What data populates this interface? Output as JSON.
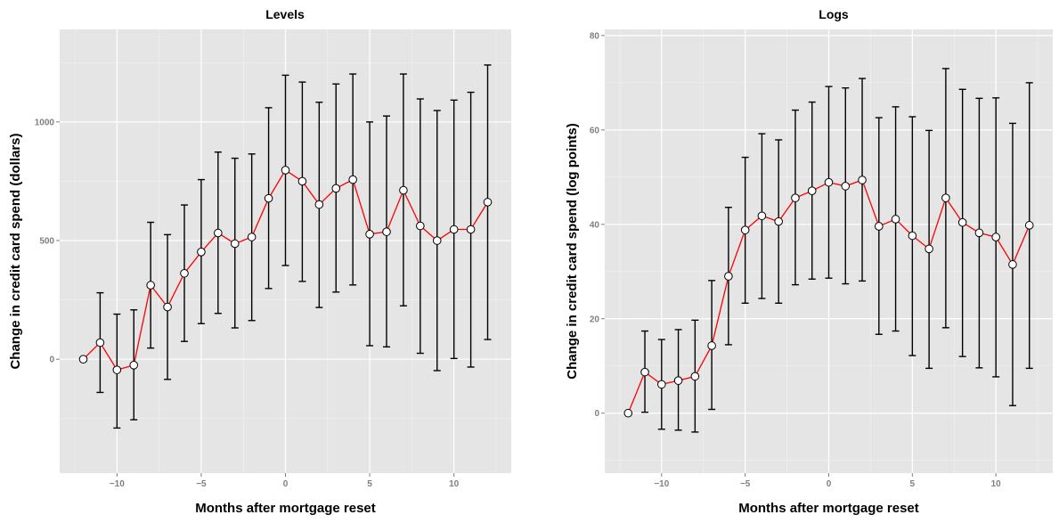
{
  "chart_data": [
    {
      "type": "line",
      "title": "Levels",
      "xlabel": "Months after mortgage reset",
      "ylabel": "Change in credit card spend (dollars)",
      "xlim": [
        -13.4,
        13.4
      ],
      "ylim": [
        -480,
        1390
      ],
      "xticks": [
        -10,
        -5,
        0,
        5,
        10
      ],
      "xtick_labels": [
        "−10",
        "−5",
        "0",
        "5",
        "10"
      ],
      "yticks": [
        0,
        500,
        1000
      ],
      "ytick_labels": [
        "0",
        "500",
        "1000"
      ],
      "grid": true,
      "series_color": "#ff0000",
      "series": [
        {
          "x": [
            -12,
            -11,
            -10,
            -9,
            -8,
            -7,
            -6,
            -5,
            -4,
            -3,
            -2,
            -1,
            0,
            1,
            2,
            3,
            4,
            5,
            6,
            7,
            8,
            9,
            10,
            11,
            12
          ],
          "y": [
            0,
            70,
            -45,
            -25,
            312,
            220,
            362,
            452,
            532,
            487,
            515,
            678,
            797,
            750,
            652,
            720,
            757,
            527,
            537,
            712,
            562,
            500,
            547,
            547,
            662
          ],
          "y_low": [
            0,
            -140,
            -290,
            -255,
            47,
            -85,
            75,
            150,
            193,
            132,
            163,
            298,
            395,
            328,
            218,
            283,
            313,
            57,
            52,
            225,
            25,
            -48,
            3,
            -33,
            83
          ],
          "y_high": [
            0,
            280,
            190,
            208,
            577,
            525,
            650,
            757,
            873,
            847,
            865,
            1060,
            1197,
            1168,
            1083,
            1160,
            1202,
            1000,
            1025,
            1202,
            1097,
            1048,
            1092,
            1125,
            1240
          ]
        }
      ]
    },
    {
      "type": "line",
      "title": "Logs",
      "xlabel": "Months after mortgage reset",
      "ylabel": "Change in credit card spend (log points)",
      "xlim": [
        -13.4,
        13.4
      ],
      "ylim": [
        -12.7,
        81.3
      ],
      "xticks": [
        -10,
        -5,
        0,
        5,
        10
      ],
      "xtick_labels": [
        "−10",
        "−5",
        "0",
        "5",
        "10"
      ],
      "yticks": [
        0,
        20,
        40,
        60,
        80
      ],
      "ytick_labels": [
        "0",
        "20",
        "40",
        "60",
        "80"
      ],
      "grid": true,
      "series_color": "#ff0000",
      "series": [
        {
          "x": [
            -12,
            -11,
            -10,
            -9,
            -8,
            -7,
            -6,
            -5,
            -4,
            -3,
            -2,
            -1,
            0,
            1,
            2,
            3,
            4,
            5,
            6,
            7,
            8,
            9,
            10,
            11,
            12
          ],
          "y": [
            0,
            8.7,
            6.1,
            6.9,
            7.8,
            14.3,
            29,
            38.8,
            41.8,
            40.6,
            45.6,
            47.1,
            48.9,
            48.1,
            49.4,
            39.6,
            41.1,
            37.6,
            34.8,
            45.6,
            40.4,
            38.2,
            37.3,
            31.5,
            39.8
          ],
          "y_low": [
            0,
            0.2,
            -3.4,
            -3.6,
            -4,
            0.8,
            14.5,
            23.3,
            24.3,
            23.3,
            27.2,
            28.4,
            28.6,
            27.4,
            28,
            16.7,
            17.4,
            12.2,
            9.5,
            18.1,
            12,
            9.6,
            7.7,
            1.6,
            9.5
          ],
          "y_high": [
            0,
            17.4,
            15.6,
            17.7,
            19.7,
            28.1,
            43.6,
            54.2,
            59.2,
            57.9,
            64.2,
            65.9,
            69.2,
            68.9,
            70.9,
            62.6,
            64.9,
            62.8,
            59.9,
            73,
            68.6,
            66.7,
            66.8,
            61.4,
            70
          ]
        }
      ]
    }
  ]
}
